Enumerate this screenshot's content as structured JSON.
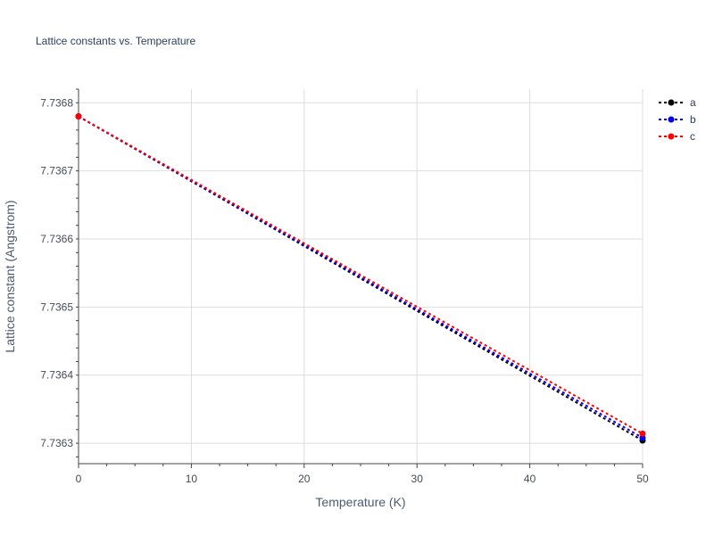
{
  "chart_data": {
    "type": "line",
    "title": "Lattice constants vs. Temperature",
    "xlabel": "Temperature (K)",
    "ylabel": "Lattice constant (Angstrom)",
    "xlim": [
      0,
      50
    ],
    "ylim": [
      7.73627,
      7.73682
    ],
    "x_ticks": [
      0,
      10,
      20,
      30,
      40,
      50
    ],
    "x_tick_labels": [
      "0",
      "10",
      "20",
      "30",
      "40",
      "50"
    ],
    "y_ticks": [
      7.7363,
      7.7364,
      7.7365,
      7.7366,
      7.7367,
      7.7368
    ],
    "y_tick_labels": [
      "7.7363",
      "7.7364",
      "7.7365",
      "7.7366",
      "7.7367",
      "7.7368"
    ],
    "grid": true,
    "legend_position": "top-right",
    "x": [
      0,
      50
    ],
    "series": [
      {
        "name": "a",
        "color": "#000000",
        "values": [
          7.73678,
          7.736304
        ]
      },
      {
        "name": "b",
        "color": "#0000ff",
        "values": [
          7.73678,
          7.736308
        ]
      },
      {
        "name": "c",
        "color": "#ff0000",
        "values": [
          7.73678,
          7.736314
        ]
      }
    ]
  }
}
